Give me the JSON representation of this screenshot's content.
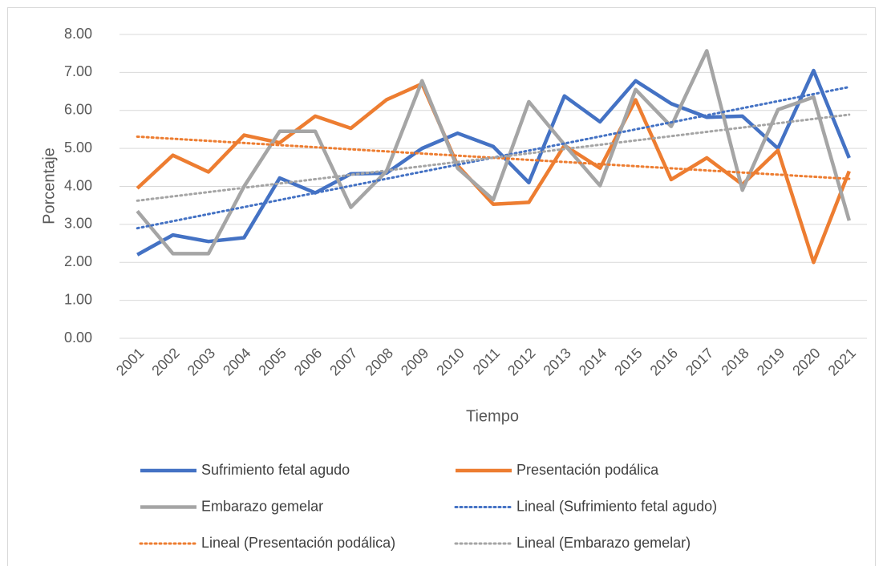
{
  "chart_data": {
    "type": "line",
    "x_label": "Tiempo",
    "y_label": "Porcentaje",
    "categories": [
      "2001",
      "2002",
      "2003",
      "2004",
      "2005",
      "2006",
      "2007",
      "2008",
      "2009",
      "2010",
      "2011",
      "2012",
      "2013",
      "2014",
      "2015",
      "2016",
      "2017",
      "2018",
      "2019",
      "2020",
      "2021"
    ],
    "series": [
      {
        "name": "Sufrimiento fetal agudo",
        "color": "#4472c4",
        "values": [
          2.2,
          2.72,
          2.55,
          2.65,
          4.22,
          3.83,
          4.33,
          4.35,
          5.0,
          5.4,
          5.05,
          4.1,
          6.38,
          5.7,
          6.78,
          6.18,
          5.82,
          5.85,
          5.0,
          7.05,
          4.75
        ],
        "trendline": {
          "name": "Lineal (Sufrimiento fetal agudo)"
        }
      },
      {
        "name": "Presentación podálica",
        "color": "#ed7d31",
        "values": [
          3.95,
          4.82,
          4.38,
          5.35,
          5.15,
          5.85,
          5.53,
          6.28,
          6.7,
          4.55,
          3.53,
          3.58,
          5.08,
          4.48,
          6.28,
          4.18,
          4.75,
          4.05,
          4.95,
          2.0,
          4.4
        ],
        "trendline": {
          "name": "Lineal (Presentación podálica)"
        }
      },
      {
        "name": "Embarazo gemelar",
        "color": "#a5a5a5",
        "values": [
          3.35,
          2.23,
          2.23,
          4.0,
          5.45,
          5.45,
          3.45,
          4.4,
          6.78,
          4.48,
          3.65,
          6.23,
          5.1,
          4.02,
          6.55,
          5.58,
          7.57,
          3.9,
          6.02,
          6.35,
          3.1
        ],
        "trendline": {
          "name": "Lineal (Embarazo gemelar)"
        }
      }
    ],
    "ylim": [
      0,
      8
    ],
    "yticks": [
      {
        "value": 0,
        "label": "0.00"
      },
      {
        "value": 1,
        "label": "1.00"
      },
      {
        "value": 2,
        "label": "2.00"
      },
      {
        "value": 3,
        "label": "3.00"
      },
      {
        "value": 4,
        "label": "4.00"
      },
      {
        "value": 5,
        "label": "5.00"
      },
      {
        "value": 6,
        "label": "6.00"
      },
      {
        "value": 7,
        "label": "7.00"
      },
      {
        "value": 8,
        "label": "8.00"
      }
    ],
    "grid": true,
    "legend": "bottom"
  }
}
